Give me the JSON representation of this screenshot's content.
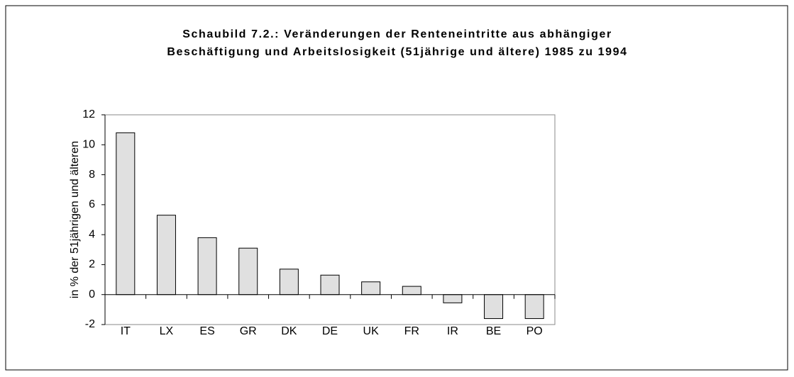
{
  "chart_data": {
    "type": "bar",
    "title": [
      "Schaubild 7.2.: Veränderungen der Renteneintritte aus abhängiger",
      "Beschäftigung und Arbeitslosigkeit (51jährige und ältere) 1985 zu 1994"
    ],
    "y_label": "in % der 51jährigen und älteren",
    "categories": [
      "IT",
      "LX",
      "ES",
      "GR",
      "DK",
      "DE",
      "UK",
      "FR",
      "IR",
      "BE",
      "PO"
    ],
    "values": [
      10.8,
      5.3,
      3.8,
      3.1,
      1.7,
      1.3,
      0.85,
      0.55,
      -0.55,
      -1.6,
      -1.6
    ],
    "color": "#e0e0e0",
    "ylim": [
      -2,
      12
    ],
    "yticks": [
      -2,
      0,
      2,
      4,
      6,
      8,
      10,
      12
    ],
    "grid": false
  }
}
